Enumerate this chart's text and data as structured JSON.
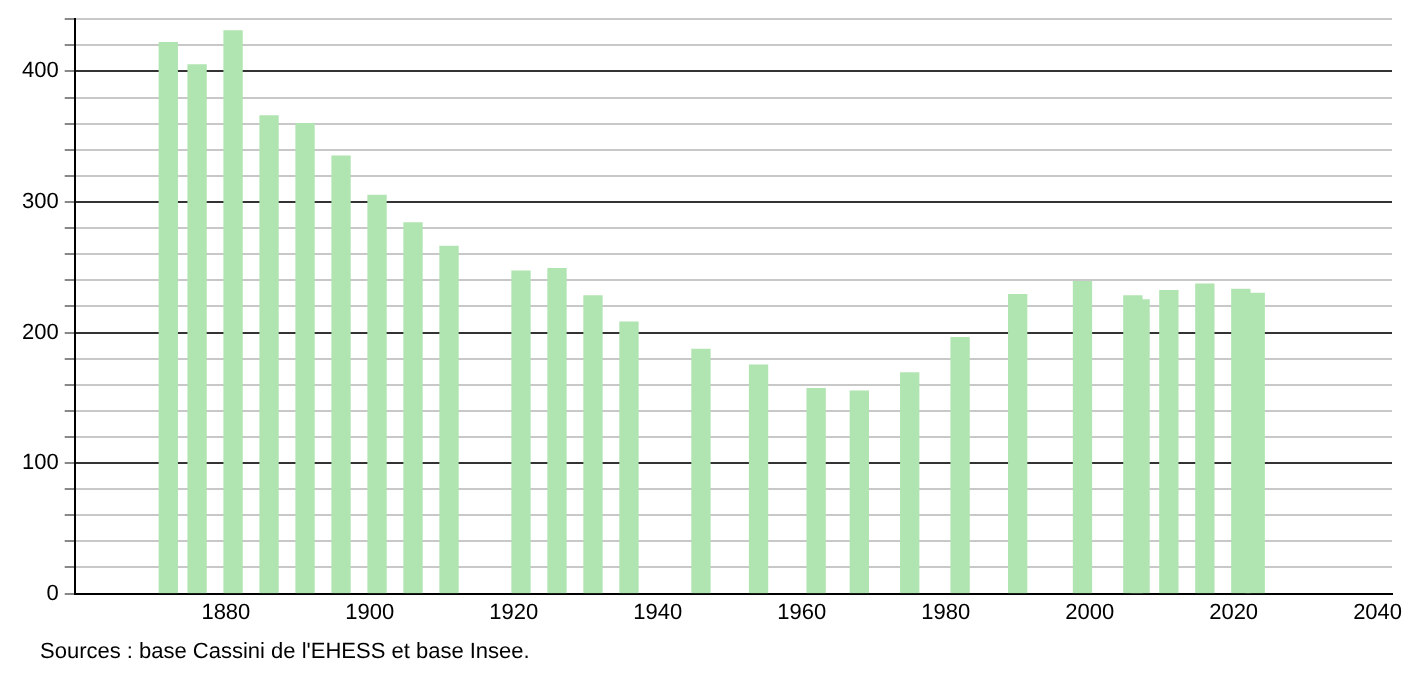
{
  "chart_data": {
    "type": "bar",
    "x": [
      1872,
      1876,
      1881,
      1886,
      1891,
      1896,
      1901,
      1906,
      1911,
      1921,
      1926,
      1931,
      1936,
      1946,
      1954,
      1962,
      1968,
      1975,
      1982,
      1990,
      1999,
      2006,
      2007,
      2011,
      2016,
      2021,
      2023
    ],
    "values": [
      422,
      405,
      431,
      366,
      360,
      335,
      305,
      284,
      266,
      247,
      249,
      228,
      208,
      187,
      175,
      157,
      155,
      169,
      196,
      229,
      239,
      228,
      225,
      232,
      237,
      233,
      230
    ],
    "color": "#b0e4b0",
    "xlim": [
      1859,
      2042
    ],
    "xticks": [
      1880,
      1900,
      1920,
      1940,
      1960,
      1980,
      2000,
      2020,
      2040
    ],
    "ylim": [
      0,
      440
    ],
    "yticks": [
      0,
      {
        "value": 20,
        "label": null
      },
      {
        "value": 40,
        "label": null
      },
      {
        "value": 60,
        "label": null
      },
      {
        "value": 80,
        "label": null
      },
      100,
      {
        "value": 120,
        "label": null
      },
      {
        "value": 140,
        "label": null
      },
      {
        "value": 160,
        "label": null
      },
      {
        "value": 180,
        "label": null
      },
      200,
      {
        "value": 220,
        "label": null
      },
      {
        "value": 240,
        "label": null
      },
      {
        "value": 260,
        "label": null
      },
      {
        "value": 280,
        "label": null
      },
      300,
      {
        "value": 320,
        "label": null
      },
      {
        "value": 340,
        "label": null
      },
      {
        "value": 360,
        "label": null
      },
      {
        "value": 380,
        "label": null
      },
      400,
      {
        "value": 420,
        "label": null
      },
      {
        "value": 440,
        "label": null
      }
    ],
    "grid": "y",
    "legend": false,
    "annotations": [
      "Sources : base Cassini de l'EHESS et base Insee."
    ]
  }
}
